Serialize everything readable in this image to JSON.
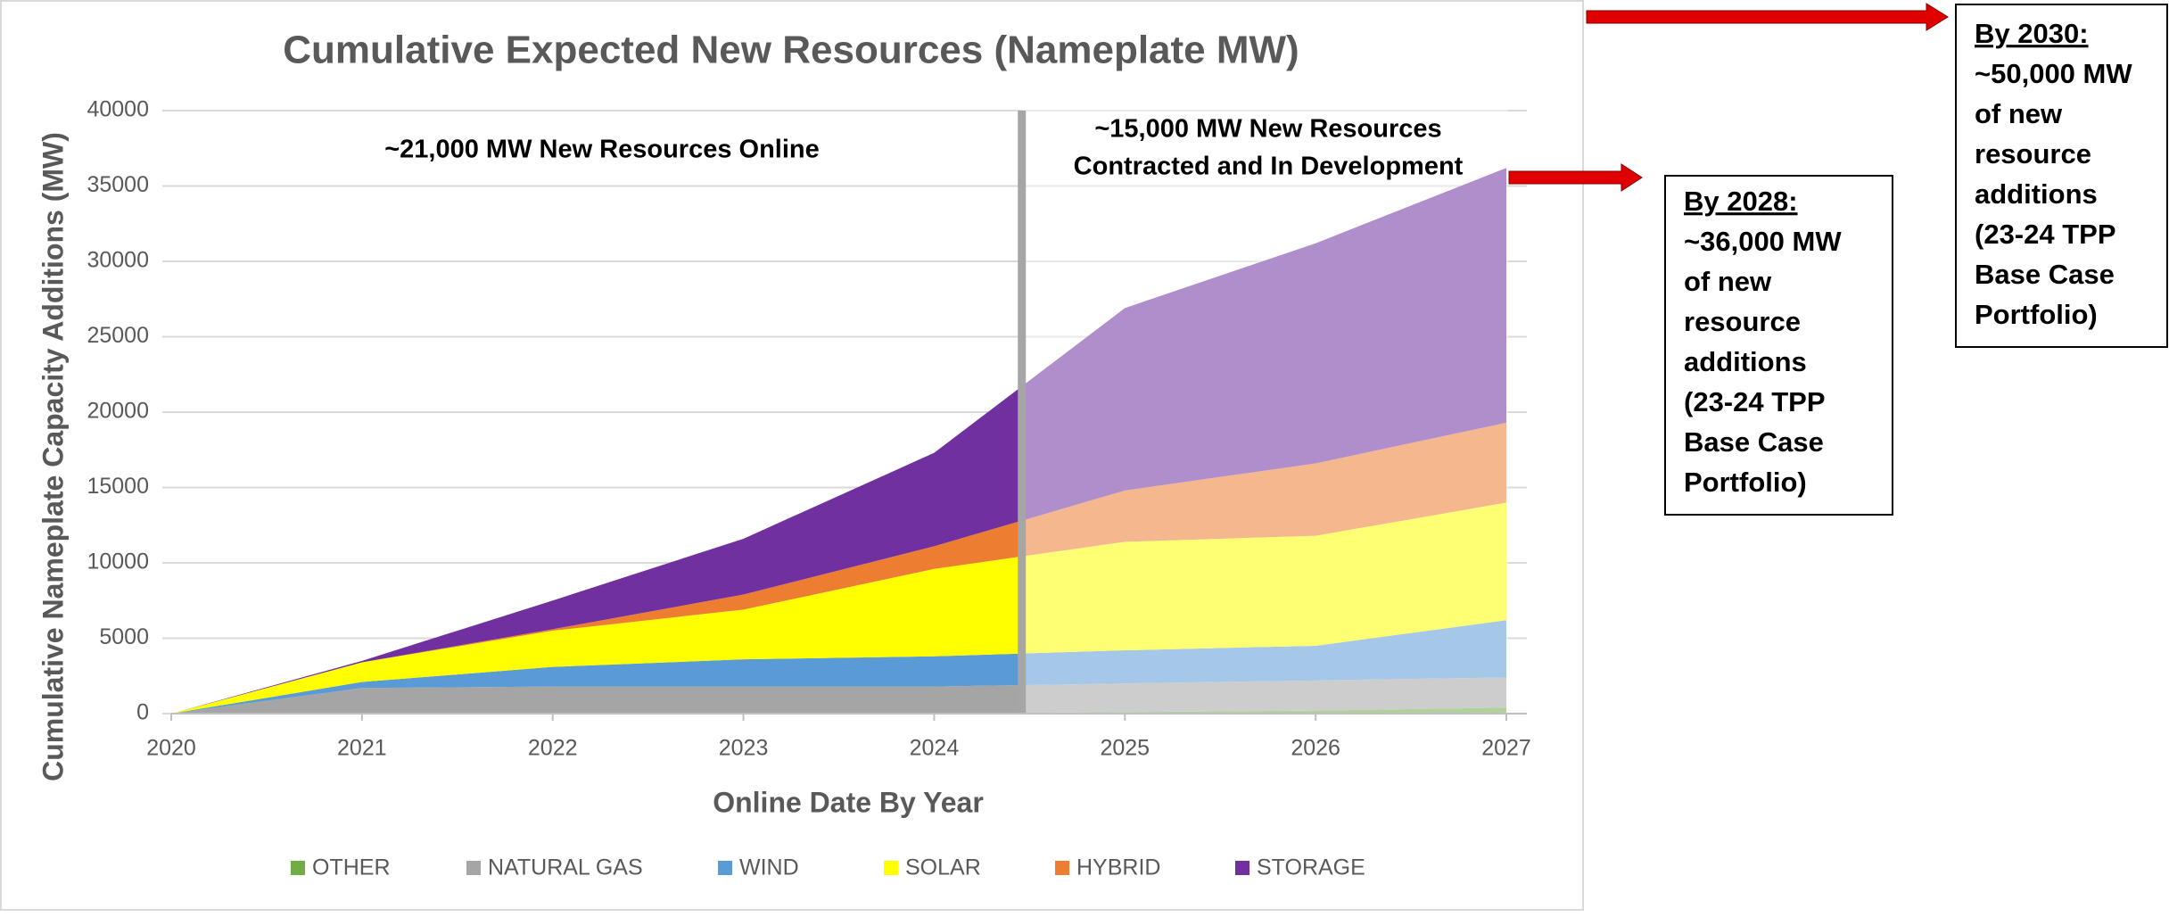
{
  "chart_data": {
    "type": "stacked_area",
    "title": "Cumulative Expected New Resources (Nameplate MW)",
    "x_label": "Online Date By Year",
    "y_label": "Cumulative Nameplate Capacity Additions (MW)",
    "x": [
      2020,
      2021,
      2022,
      2023,
      2024,
      2025,
      2026,
      2027
    ],
    "xlim": [
      2020,
      2027
    ],
    "xticks": [
      2020,
      2021,
      2022,
      2023,
      2024,
      2025,
      2026,
      2027
    ],
    "ylim": [
      0,
      40000
    ],
    "yticks": [
      0,
      5000,
      10000,
      15000,
      20000,
      25000,
      30000,
      35000,
      40000
    ],
    "grid": true,
    "legend": "bottom",
    "series": [
      {
        "name": "OTHER",
        "color": "#70ad47",
        "values": [
          0,
          0,
          0,
          0,
          0,
          100,
          200,
          400
        ]
      },
      {
        "name": "NATURAL GAS",
        "color": "#a5a5a5",
        "values": [
          0,
          1700,
          1800,
          1800,
          1800,
          1900,
          2000,
          2000
        ]
      },
      {
        "name": "WIND",
        "color": "#5b9bd5",
        "values": [
          0,
          400,
          1300,
          1800,
          2000,
          2200,
          2300,
          3800
        ]
      },
      {
        "name": "SOLAR",
        "color": "#ffff00",
        "values": [
          0,
          1300,
          2400,
          3300,
          5800,
          7200,
          7300,
          7800
        ]
      },
      {
        "name": "HYBRID",
        "color": "#ed7d31",
        "values": [
          0,
          0,
          100,
          1000,
          1500,
          3400,
          4800,
          5300
        ]
      },
      {
        "name": "STORAGE",
        "color": "#7030a0",
        "values": [
          0,
          100,
          1900,
          3700,
          6200,
          12100,
          14600,
          16900
        ]
      }
    ],
    "annotations": [
      {
        "lines": [
          "~21,000 MW New Resources Online"
        ]
      },
      {
        "lines": [
          "~15,000 MW New Resources",
          "Contracted and In Development"
        ]
      }
    ]
  },
  "callouts": [
    {
      "heading": "By 2028:",
      "lines": [
        "~36,000 MW",
        "of new",
        "resource",
        "additions",
        "(23-24 TPP",
        "Base Case",
        "Portfolio)"
      ]
    },
    {
      "heading": "By 2030:",
      "lines": [
        "~50,000 MW",
        "of new",
        "resource",
        "additions",
        "(23-24 TPP",
        "Base Case",
        "Portfolio)"
      ]
    }
  ]
}
